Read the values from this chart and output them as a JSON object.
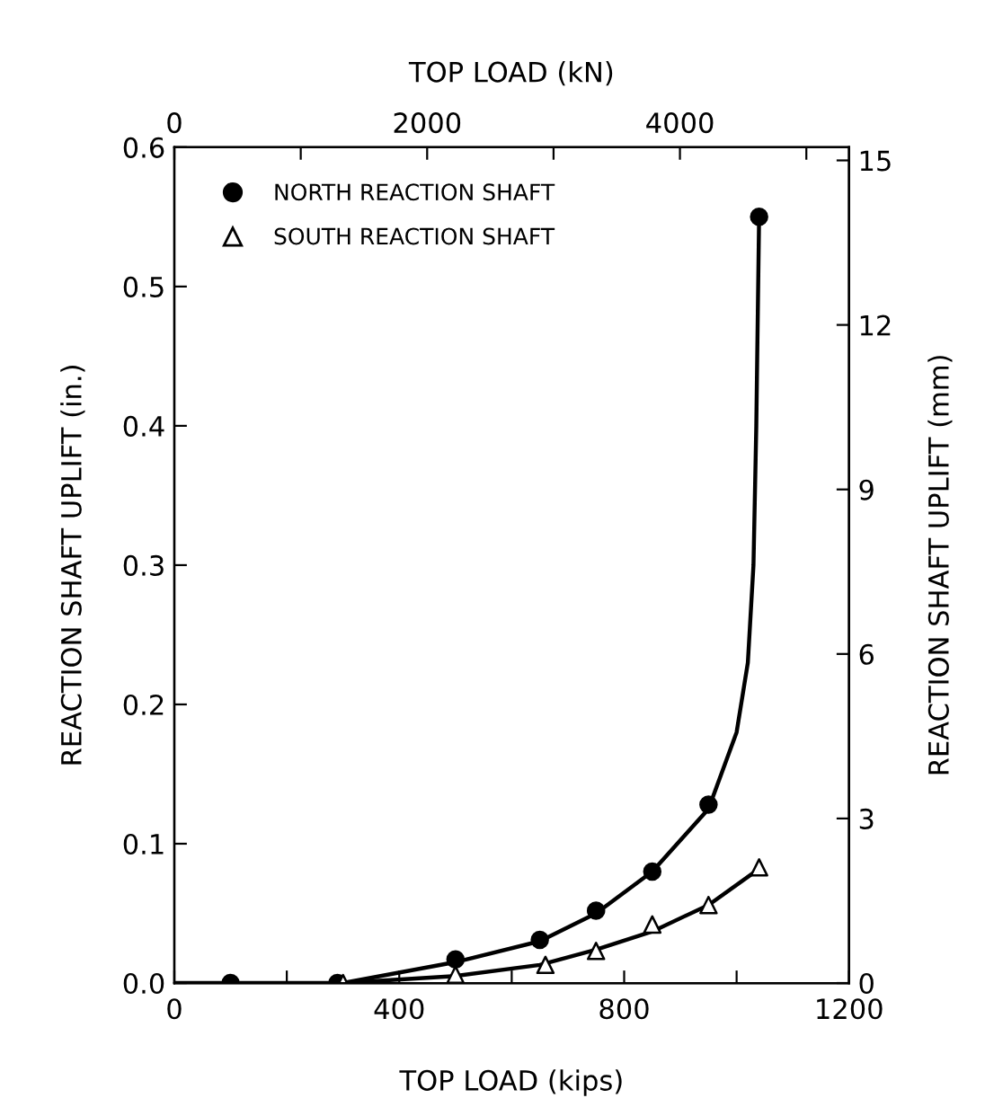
{
  "chart_data": {
    "type": "scatter",
    "xlabel": "TOP LOAD (kips)",
    "ylabel": "REACTION SHAFT UPLIFT (in.)",
    "y2label": "REACTION SHAFT UPLIFT (mm)",
    "x2label": "TOP LOAD (kN)",
    "xlim": [
      0,
      1200
    ],
    "xticks": [
      0,
      {
        "value": 200,
        "label": null
      },
      400,
      {
        "value": 600,
        "label": null
      },
      800,
      {
        "value": 1000,
        "label": null
      },
      1200
    ],
    "ylim": [
      0,
      0.6
    ],
    "yticks": [
      {
        "value": 0,
        "label": "0.0"
      },
      0.1,
      0.2,
      0.3,
      0.4,
      0.5,
      0.6
    ],
    "x2lim": [
      0,
      5338
    ],
    "x2ticks": [
      0,
      {
        "value": 1000,
        "label": null
      },
      2000,
      {
        "value": 3000,
        "label": null
      },
      4000,
      {
        "value": 5000,
        "label": null
      }
    ],
    "y2lim": [
      0,
      15.24
    ],
    "y2ticks": [
      0,
      3,
      6,
      9,
      12,
      15
    ],
    "grid": false,
    "legend": "top left",
    "series": [
      {
        "name": "NORTH REACTION SHAFT",
        "marker": "circle",
        "color": "#000000",
        "x": [
          100,
          290,
          500,
          650,
          750,
          850,
          950,
          1040
        ],
        "values": [
          0,
          0,
          0.017,
          0.031,
          0.052,
          0.08,
          0.128,
          0.55
        ]
      },
      {
        "name": "SOUTH REACTION SHAFT",
        "marker": "triangle",
        "color": "#ffffff",
        "x": [
          300,
          500,
          660,
          750,
          850,
          950,
          1040
        ],
        "values": [
          0,
          0.006,
          0.013,
          0.023,
          0.042,
          0.056,
          0.083
        ]
      },
      {
        "type": "line",
        "line_style": "solid",
        "color": "#000000",
        "x": [
          0,
          300,
          500,
          650,
          750,
          850,
          950,
          1000,
          1020,
          1030,
          1035,
          1040
        ],
        "values": [
          0,
          0,
          0.015,
          0.03,
          0.05,
          0.08,
          0.125,
          0.18,
          0.23,
          0.3,
          0.4,
          0.55
        ]
      },
      {
        "type": "line",
        "line_style": "solid",
        "color": "#000000",
        "x": [
          300,
          500,
          650,
          750,
          850,
          950,
          1040
        ],
        "values": [
          0,
          0.005,
          0.013,
          0.024,
          0.037,
          0.056,
          0.082
        ]
      }
    ]
  }
}
